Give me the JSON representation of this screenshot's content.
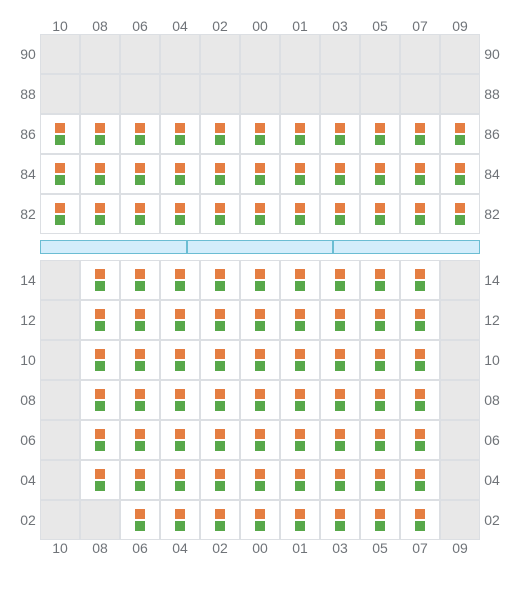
{
  "layout": {
    "cell_size": 40,
    "label_fontsize": 14,
    "label_color": "#6f7378",
    "grid_border_color": "#dcdfe3",
    "empty_cell_bg": "#e8e8e8",
    "filled_cell_bg": "#ffffff",
    "background": "#ffffff"
  },
  "columns": [
    "10",
    "08",
    "06",
    "04",
    "02",
    "00",
    "01",
    "03",
    "05",
    "07",
    "09"
  ],
  "marker": {
    "top_color": "#e57e42",
    "bottom_color": "#58a84a",
    "size": 10
  },
  "top_section": {
    "rows": [
      "90",
      "88",
      "86",
      "84",
      "82"
    ],
    "filled": {
      "90": [],
      "88": [],
      "86": [
        "10",
        "08",
        "06",
        "04",
        "02",
        "00",
        "01",
        "03",
        "05",
        "07",
        "09"
      ],
      "84": [
        "10",
        "08",
        "06",
        "04",
        "02",
        "00",
        "01",
        "03",
        "05",
        "07",
        "09"
      ],
      "82": [
        "10",
        "08",
        "06",
        "04",
        "02",
        "00",
        "01",
        "03",
        "05",
        "07",
        "09"
      ]
    }
  },
  "divider": {
    "segments": 3,
    "bg": "#d3edfb",
    "border": "#6bbdd3",
    "height": 14
  },
  "bottom_section": {
    "rows": [
      "14",
      "12",
      "10",
      "08",
      "06",
      "04",
      "02"
    ],
    "filled": {
      "14": [
        "08",
        "06",
        "04",
        "02",
        "00",
        "01",
        "03",
        "05",
        "07"
      ],
      "12": [
        "08",
        "06",
        "04",
        "02",
        "00",
        "01",
        "03",
        "05",
        "07"
      ],
      "10": [
        "08",
        "06",
        "04",
        "02",
        "00",
        "01",
        "03",
        "05",
        "07"
      ],
      "08": [
        "08",
        "06",
        "04",
        "02",
        "00",
        "01",
        "03",
        "05",
        "07"
      ],
      "06": [
        "08",
        "06",
        "04",
        "02",
        "00",
        "01",
        "03",
        "05",
        "07"
      ],
      "04": [
        "08",
        "06",
        "04",
        "02",
        "00",
        "01",
        "03",
        "05",
        "07"
      ],
      "02": [
        "06",
        "04",
        "02",
        "00",
        "01",
        "03",
        "05",
        "07"
      ]
    }
  }
}
